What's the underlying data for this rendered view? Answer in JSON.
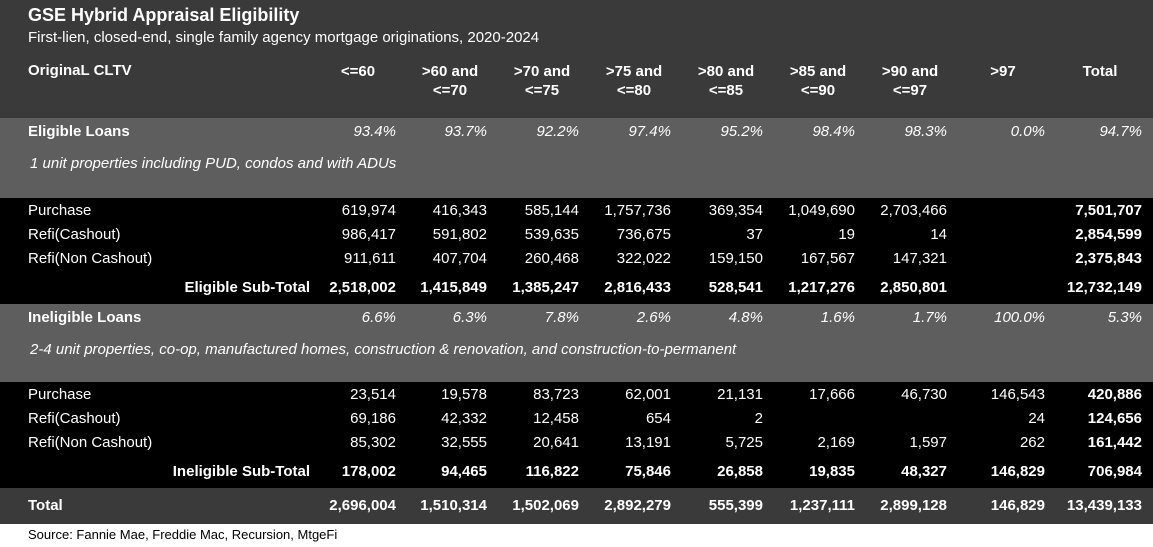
{
  "title": "GSE Hybrid Appraisal Eligibility",
  "subtitle": "First-lien, closed-end, single family agency mortgage originations, 2020-2024",
  "header": {
    "row_label": "OriginaL CLTV",
    "columns": [
      "<=60",
      ">60 and\n<=70",
      ">70 and\n<=75",
      ">75 and\n<=80",
      ">80 and\n<=85",
      ">85 and\n<=90",
      ">90 and\n<=97",
      ">97",
      "Total"
    ]
  },
  "eligible": {
    "label": "Eligible Loans",
    "pcts": [
      "93.4%",
      "93.7%",
      "92.2%",
      "97.4%",
      "95.2%",
      "98.4%",
      "98.3%",
      "0.0%",
      "94.7%"
    ],
    "note": "1 unit properties including PUD, condos and with ADUs",
    "rows": [
      {
        "label": "Purchase",
        "values": [
          "619,974",
          "416,343",
          "585,144",
          "1,757,736",
          "369,354",
          "1,049,690",
          "2,703,466",
          "",
          "7,501,707"
        ]
      },
      {
        "label": "Refi(Cashout)",
        "values": [
          "986,417",
          "591,802",
          "539,635",
          "736,675",
          "37",
          "19",
          "14",
          "",
          "2,854,599"
        ]
      },
      {
        "label": "Refi(Non Cashout)",
        "values": [
          "911,611",
          "407,704",
          "260,468",
          "322,022",
          "159,150",
          "167,567",
          "147,321",
          "",
          "2,375,843"
        ]
      }
    ],
    "subtotal": {
      "label": "Eligible Sub-Total",
      "values": [
        "2,518,002",
        "1,415,849",
        "1,385,247",
        "2,816,433",
        "528,541",
        "1,217,276",
        "2,850,801",
        "",
        "12,732,149"
      ]
    }
  },
  "ineligible": {
    "label": "Ineligible Loans",
    "pcts": [
      "6.6%",
      "6.3%",
      "7.8%",
      "2.6%",
      "4.8%",
      "1.6%",
      "1.7%",
      "100.0%",
      "5.3%"
    ],
    "note": "2-4 unit properties, co-op, manufactured homes, construction & renovation, and construction-to-permanent",
    "rows": [
      {
        "label": "Purchase",
        "values": [
          "23,514",
          "19,578",
          "83,723",
          "62,001",
          "21,131",
          "17,666",
          "46,730",
          "146,543",
          "420,886"
        ]
      },
      {
        "label": "Refi(Cashout)",
        "values": [
          "69,186",
          "42,332",
          "12,458",
          "654",
          "2",
          "",
          "",
          "24",
          "124,656"
        ]
      },
      {
        "label": "Refi(Non Cashout)",
        "values": [
          "85,302",
          "32,555",
          "20,641",
          "13,191",
          "5,725",
          "2,169",
          "1,597",
          "262",
          "161,442"
        ]
      }
    ],
    "subtotal": {
      "label": "Ineligible Sub-Total",
      "values": [
        "178,002",
        "94,465",
        "116,822",
        "75,846",
        "26,858",
        "19,835",
        "48,327",
        "146,829",
        "706,984"
      ]
    }
  },
  "total": {
    "label": "Total",
    "values": [
      "2,696,004",
      "1,510,314",
      "1,502,069",
      "2,892,279",
      "555,399",
      "1,237,111",
      "2,899,128",
      "146,829",
      "13,439,133"
    ]
  },
  "source": "Source: Fannie Mae, Freddie Mac, Recursion, MtgeFi"
}
